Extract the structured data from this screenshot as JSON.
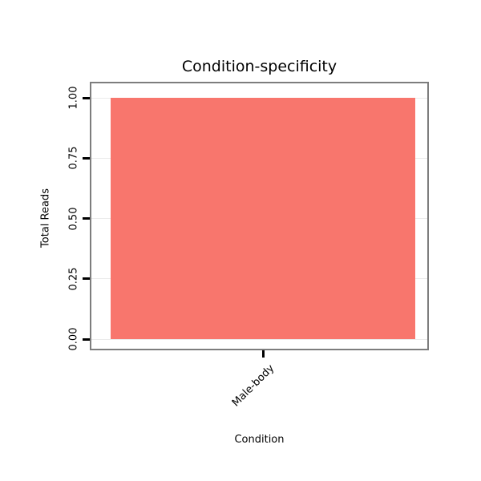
{
  "chart_data": {
    "type": "bar",
    "title": "Condition-specificity",
    "xlabel": "Condition",
    "ylabel": "Total Reads",
    "categories": [
      "Male-body"
    ],
    "values": [
      1.0
    ],
    "ylim": [
      0,
      1.0
    ],
    "yticks": [
      "0.00",
      "0.25",
      "0.50",
      "0.75",
      "1.00"
    ],
    "ytick_values": [
      0,
      0.25,
      0.5,
      0.75,
      1.0
    ],
    "legend": "none",
    "grid": "faint horizontal major gridlines",
    "bar_color": "#F8766D"
  },
  "colors": {
    "bar_fill": "#F8766D",
    "panel_border": "#7d7d7d",
    "gridline": "#ebebeb",
    "text": "#000000",
    "background": "#ffffff"
  }
}
